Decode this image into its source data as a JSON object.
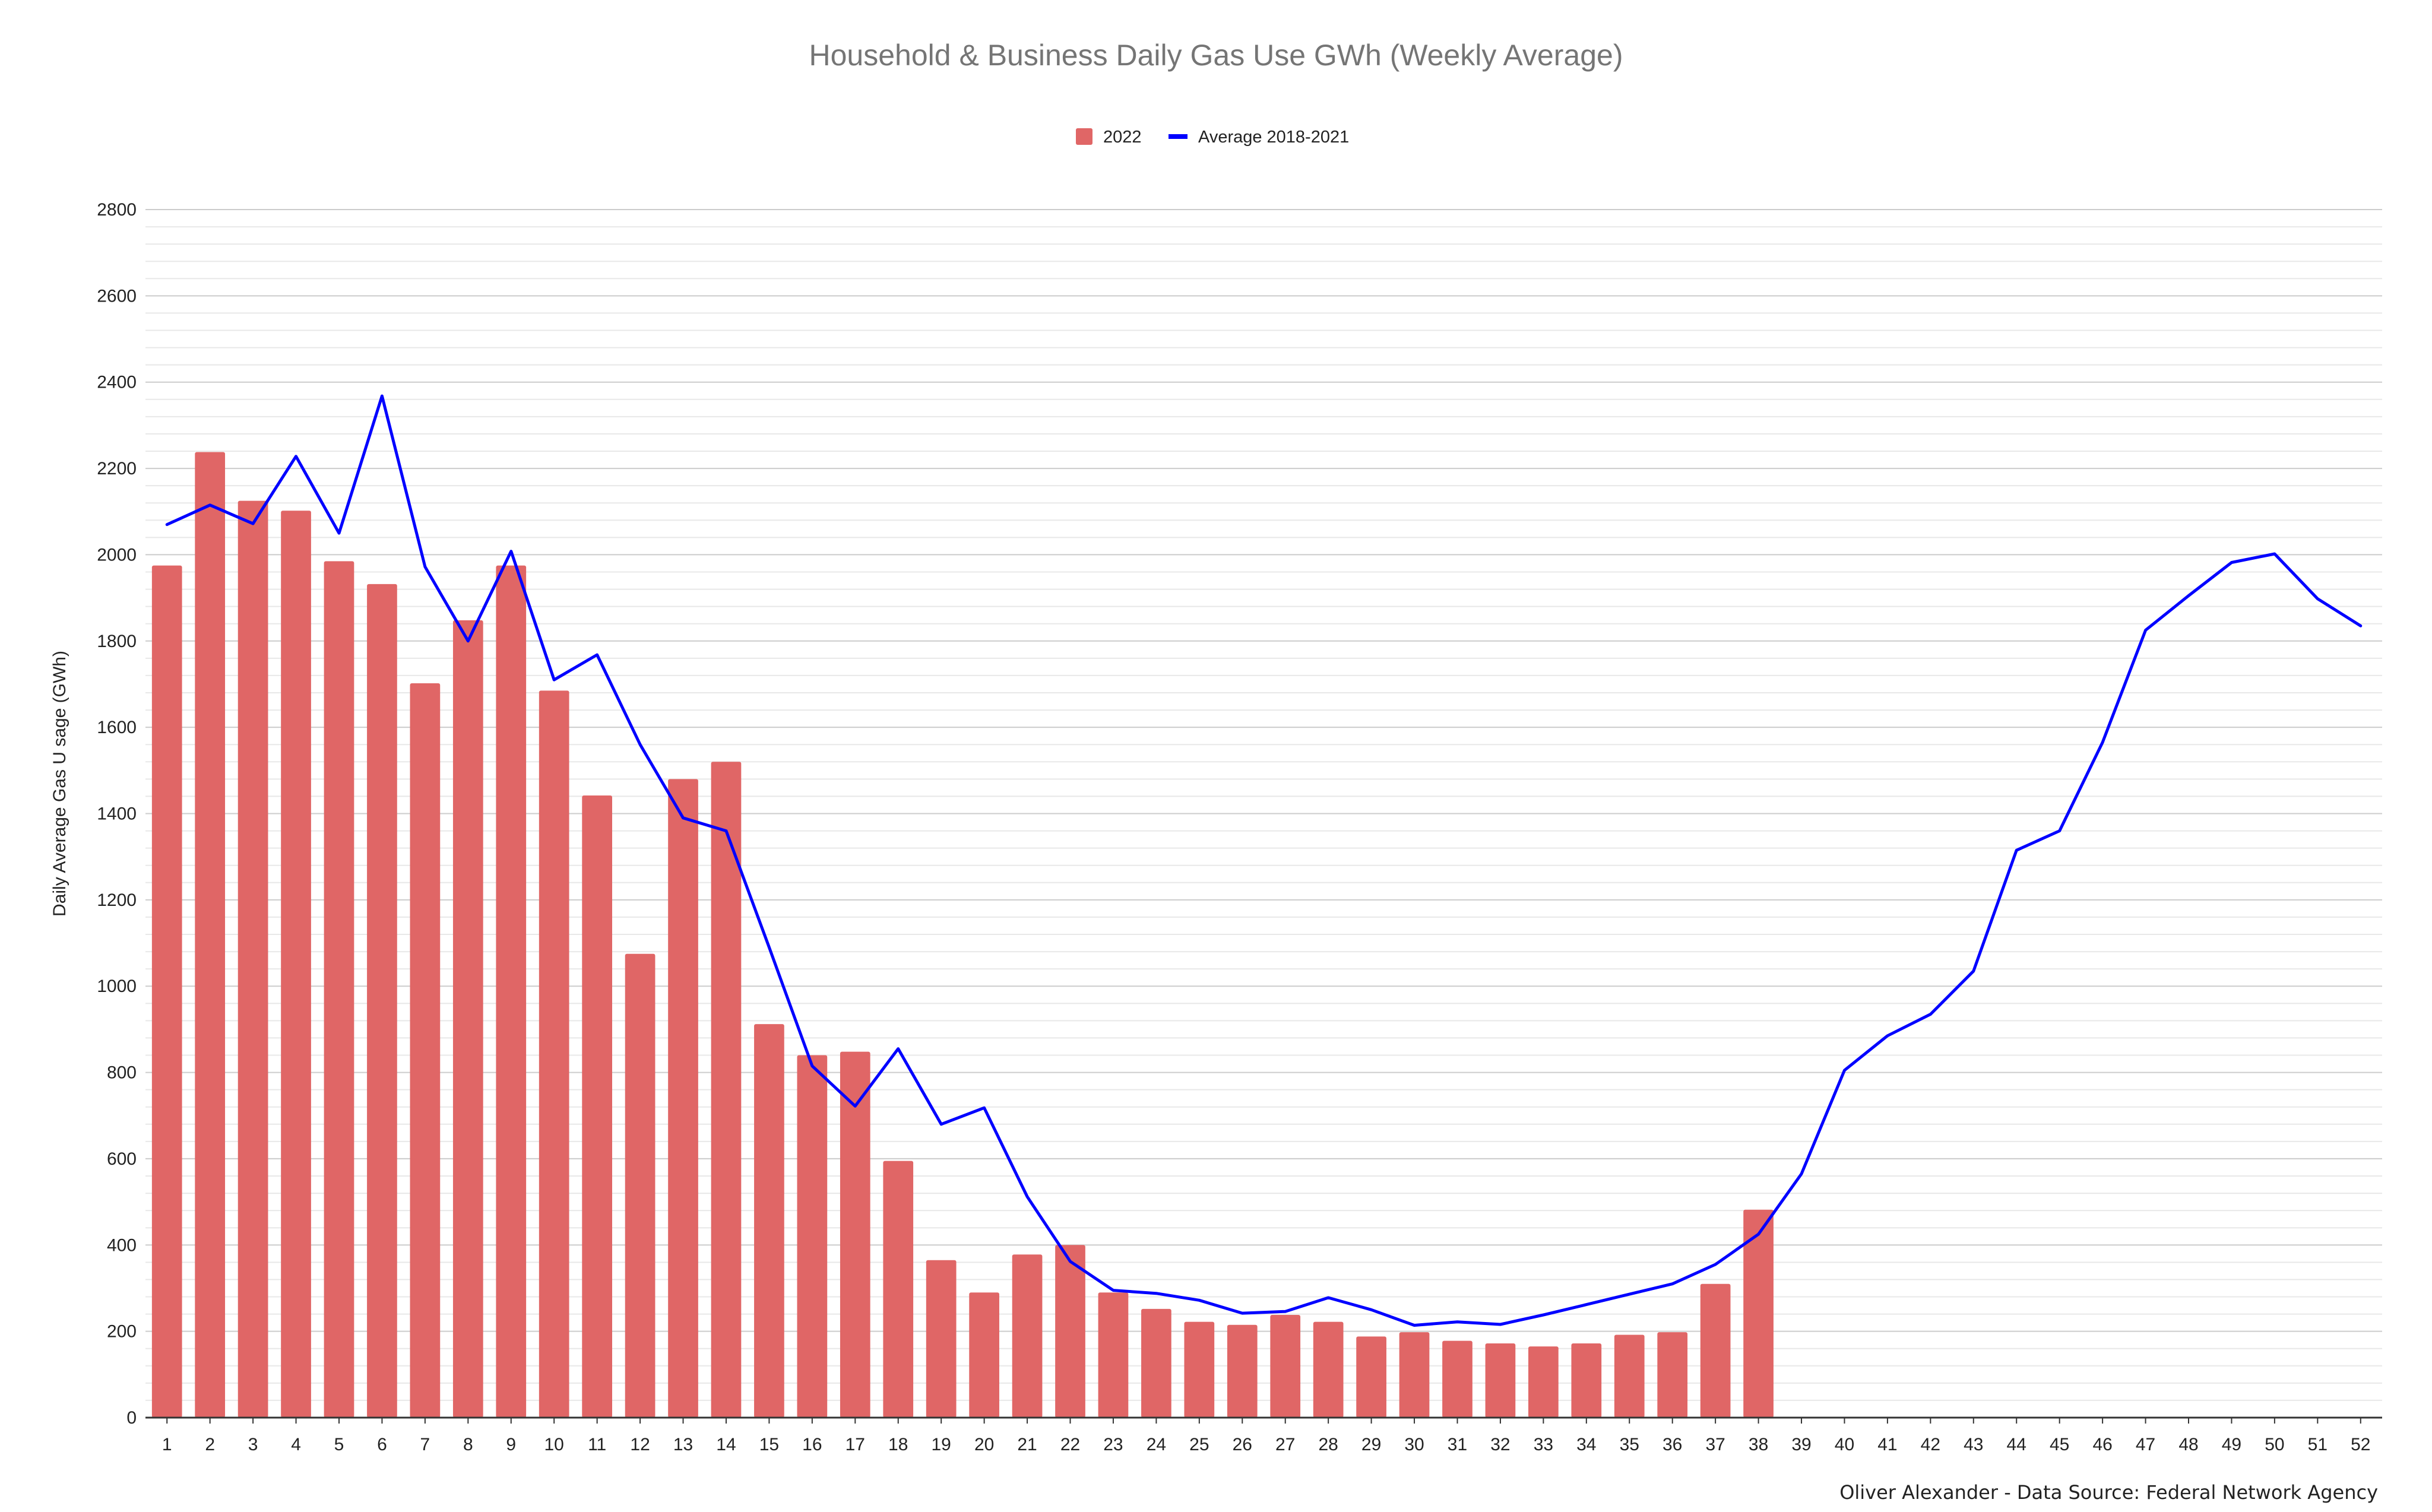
{
  "chart_data": {
    "type": "bar",
    "title": "Household & Business Daily Gas Use GWh (Weekly Average)",
    "xlabel": "",
    "ylabel": "Daily Average Gas U sage (GWh)",
    "ylim": [
      0,
      2800
    ],
    "yticks": [
      0,
      200,
      400,
      600,
      800,
      1000,
      1200,
      1400,
      1600,
      1800,
      2000,
      2200,
      2400,
      2600,
      2800
    ],
    "grid": true,
    "legend_position": "top-center",
    "categories": [
      "1",
      "2",
      "3",
      "4",
      "5",
      "6",
      "7",
      "8",
      "9",
      "10",
      "11",
      "12",
      "13",
      "14",
      "15",
      "16",
      "17",
      "18",
      "19",
      "20",
      "21",
      "22",
      "23",
      "24",
      "25",
      "26",
      "27",
      "28",
      "29",
      "30",
      "31",
      "32",
      "33",
      "34",
      "35",
      "36",
      "37",
      "38",
      "39",
      "40",
      "41",
      "42",
      "43",
      "44",
      "45",
      "46",
      "47",
      "48",
      "49",
      "50",
      "51",
      "52"
    ],
    "series": [
      {
        "name": "2022",
        "type": "bar",
        "color": "#e06666",
        "values": [
          1975,
          2238,
          2125,
          2102,
          1985,
          1932,
          1702,
          1848,
          1975,
          1685,
          1442,
          1075,
          1480,
          1520,
          912,
          840,
          848,
          595,
          365,
          290,
          378,
          400,
          290,
          252,
          222,
          215,
          238,
          222,
          188,
          198,
          178,
          172,
          165,
          172,
          192,
          198,
          310,
          482,
          null,
          null,
          null,
          null,
          null,
          null,
          null,
          null,
          null,
          null,
          null,
          null,
          null,
          null
        ]
      },
      {
        "name": "Average 2018-2021",
        "type": "line",
        "color": "#0000ff",
        "values": [
          2070,
          2115,
          2072,
          2228,
          2050,
          2368,
          1972,
          1800,
          2008,
          1710,
          1768,
          1560,
          1390,
          1360,
          1090,
          815,
          722,
          855,
          680,
          718,
          512,
          362,
          295,
          288,
          272,
          242,
          246,
          278,
          250,
          214,
          222,
          216,
          238,
          262,
          286,
          310,
          355,
          425,
          565,
          805,
          885,
          935,
          1035,
          1315,
          1360,
          1565,
          1825,
          1905,
          1982,
          2002,
          1898,
          1835
        ]
      }
    ],
    "footer": "Oliver Alexander - Data Source: Federal Network Agency"
  }
}
